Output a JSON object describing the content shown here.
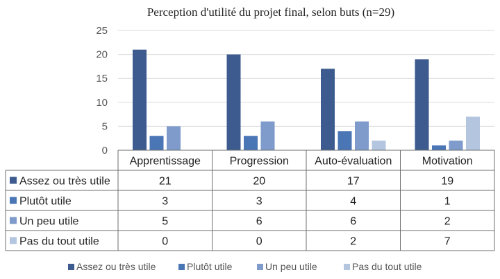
{
  "chart_data": {
    "type": "bar",
    "title": "Perception d'utilité du projet final, selon buts (n=29)",
    "categories": [
      "Apprentissage",
      "Progression",
      "Auto-évaluation",
      "Motivation"
    ],
    "ylim": [
      0,
      25
    ],
    "yticks": [
      0,
      5,
      10,
      15,
      20,
      25
    ],
    "grid": true,
    "legend_position": "bottom",
    "data_table": true,
    "series": [
      {
        "name": "Assez ou très utile",
        "values": [
          21,
          20,
          17,
          19
        ],
        "color": "#3D5B8E"
      },
      {
        "name": "Plutôt utile",
        "values": [
          3,
          3,
          4,
          1
        ],
        "color": "#4A76B5"
      },
      {
        "name": "Un peu utile",
        "values": [
          5,
          6,
          6,
          2
        ],
        "color": "#7E9BCB"
      },
      {
        "name": "Pas du tout utile",
        "values": [
          0,
          0,
          2,
          7
        ],
        "color": "#B4C5DF"
      }
    ]
  }
}
